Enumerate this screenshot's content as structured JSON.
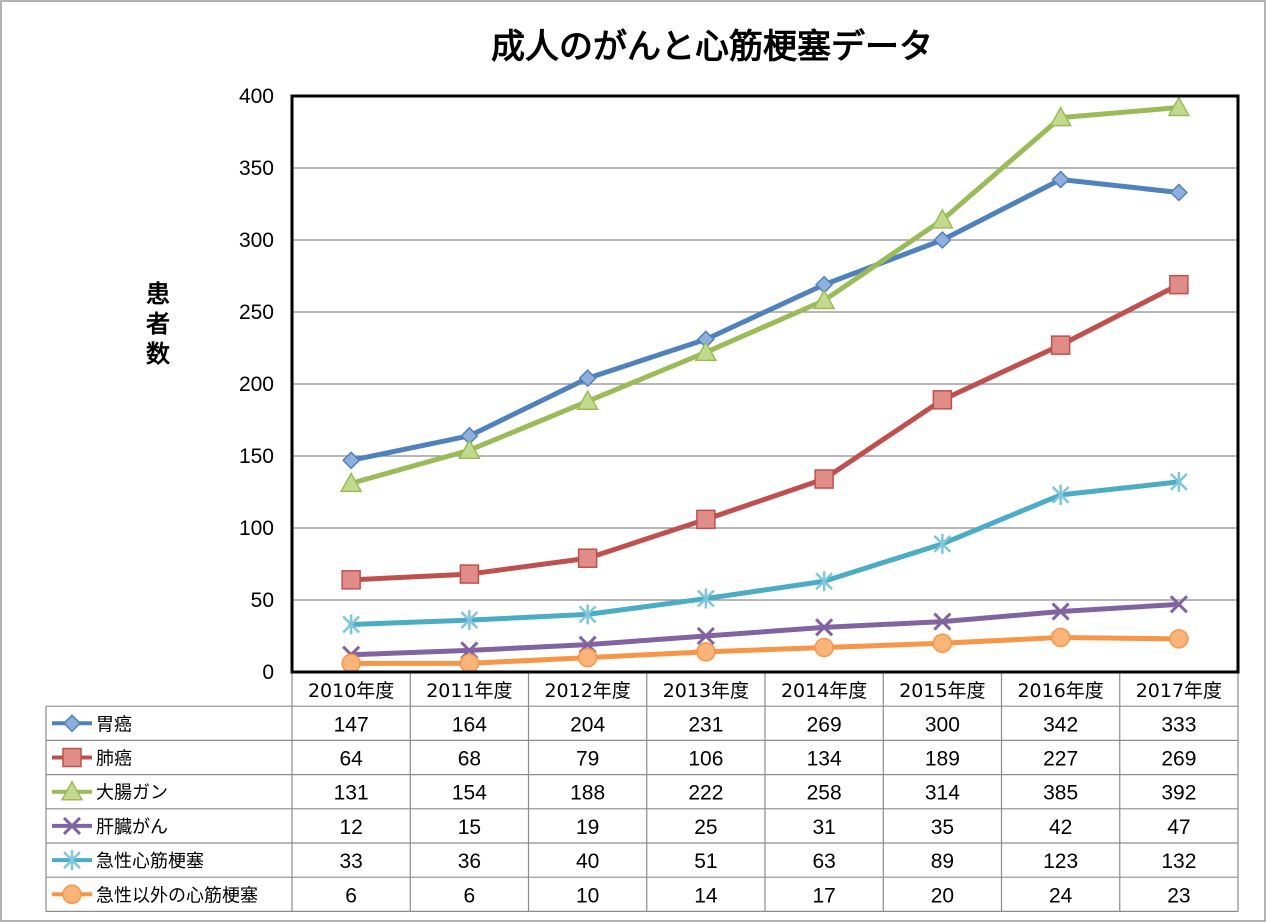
{
  "chart_data": {
    "type": "line",
    "title": "成人のがんと心筋梗塞データ",
    "ylabel": "患者数",
    "xlabel": "",
    "ylim": [
      0,
      400
    ],
    "yticks": [
      0,
      50,
      100,
      150,
      200,
      250,
      300,
      350,
      400
    ],
    "grid": true,
    "legend": "data-table",
    "categories": [
      "2010年度",
      "2011年度",
      "2012年度",
      "2013年度",
      "2014年度",
      "2015年度",
      "2016年度",
      "2017年度"
    ],
    "series": [
      {
        "name": "胃癌",
        "values": [
          147,
          164,
          204,
          231,
          269,
          300,
          342,
          333
        ],
        "color": "#4f81bd",
        "marker": "diamond"
      },
      {
        "name": "肺癌",
        "values": [
          64,
          68,
          79,
          106,
          134,
          189,
          227,
          269
        ],
        "color": "#c0504d",
        "marker": "square"
      },
      {
        "name": "大腸ガン",
        "values": [
          131,
          154,
          188,
          222,
          258,
          314,
          385,
          392
        ],
        "color": "#9bbb59",
        "marker": "triangle"
      },
      {
        "name": "肝臓がん",
        "values": [
          12,
          15,
          19,
          25,
          31,
          35,
          42,
          47
        ],
        "color": "#8064a2",
        "marker": "x"
      },
      {
        "name": "急性心筋梗塞",
        "values": [
          33,
          36,
          40,
          51,
          63,
          89,
          123,
          132
        ],
        "color": "#4bacc6",
        "marker": "star"
      },
      {
        "name": "急性以外の心筋梗塞",
        "values": [
          6,
          6,
          10,
          14,
          17,
          20,
          24,
          23
        ],
        "color": "#f79646",
        "marker": "circle"
      }
    ]
  }
}
